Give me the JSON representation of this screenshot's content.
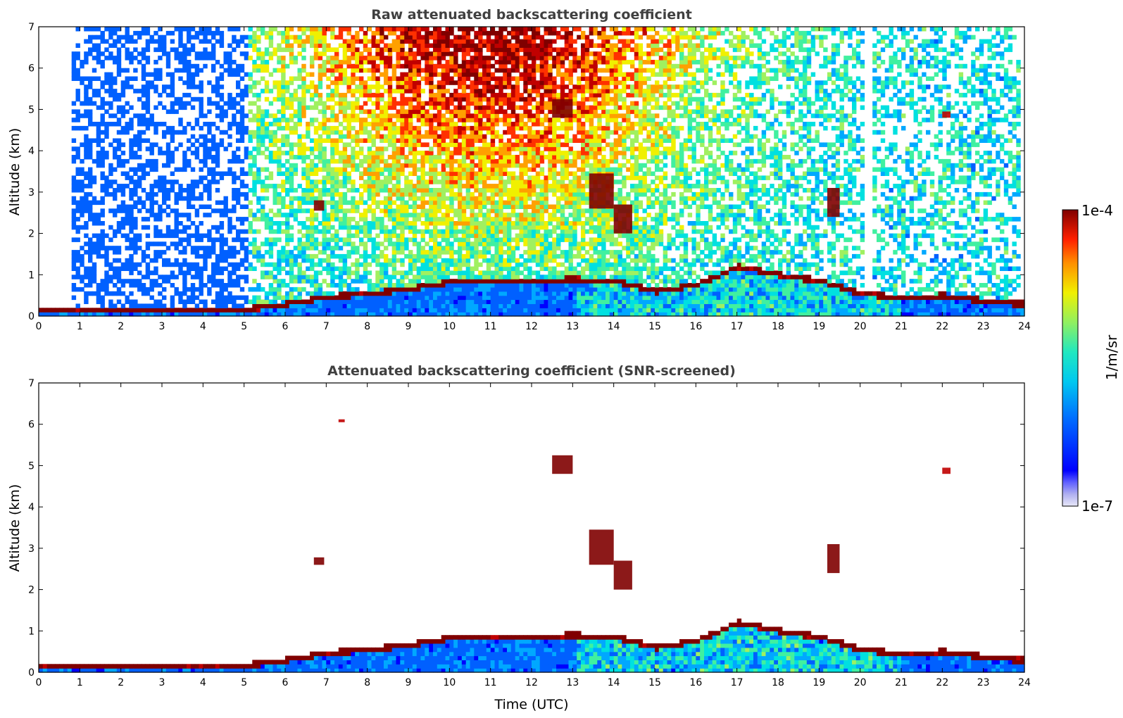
{
  "chart_data": [
    {
      "type": "heatmap",
      "title": "Raw attenuated backscattering coefficient",
      "xlabel": "",
      "ylabel": "Altitude (km)",
      "xlim": [
        0,
        24
      ],
      "ylim": [
        0,
        7
      ],
      "xticks": [
        "0",
        "1",
        "2",
        "3",
        "4",
        "5",
        "6",
        "7",
        "8",
        "9",
        "10",
        "11",
        "12",
        "13",
        "14",
        "15",
        "16",
        "17",
        "18",
        "19",
        "20",
        "21",
        "22",
        "23",
        "24"
      ],
      "yticks": [
        "0",
        "1",
        "2",
        "3",
        "4",
        "5",
        "6",
        "7"
      ],
      "colorbar": {
        "label": "1/m/sr",
        "min_label": "1e-7",
        "max_label": "1e-4",
        "scale": "log"
      },
      "screened": false,
      "colormap": [
        "#e8e8f8",
        "#b8b8f0",
        "#0000ff",
        "#0060ff",
        "#00a8ff",
        "#00e0e0",
        "#40f0a0",
        "#a0f060",
        "#f0f000",
        "#ffa000",
        "#ff3000",
        "#c00000",
        "#800000"
      ],
      "boundary_layer_top_km": [
        [
          0,
          0.12
        ],
        [
          1,
          0.1
        ],
        [
          2,
          0.08
        ],
        [
          3,
          0.08
        ],
        [
          4,
          0.1
        ],
        [
          5,
          0.12
        ],
        [
          6,
          0.25
        ],
        [
          7,
          0.42
        ],
        [
          8,
          0.5
        ],
        [
          9,
          0.62
        ],
        [
          10,
          0.78
        ],
        [
          11,
          0.82
        ],
        [
          12,
          0.8
        ],
        [
          13,
          0.85
        ],
        [
          14,
          0.8
        ],
        [
          15,
          0.55
        ],
        [
          16,
          0.72
        ],
        [
          17,
          1.15
        ],
        [
          18,
          0.95
        ],
        [
          19,
          0.8
        ],
        [
          20,
          0.5
        ],
        [
          21,
          0.4
        ],
        [
          22,
          0.45
        ],
        [
          23,
          0.32
        ],
        [
          23.8,
          0.25
        ]
      ],
      "cloud_features": [
        {
          "t_start": 6.7,
          "t_end": 6.95,
          "z_bottom": 2.55,
          "z_top": 2.8,
          "level": 1.0
        },
        {
          "t_start": 12.5,
          "t_end": 13.0,
          "z_bottom": 4.8,
          "z_top": 5.25,
          "level": 1.0
        },
        {
          "t_start": 13.4,
          "t_end": 14.0,
          "z_bottom": 2.6,
          "z_top": 3.45,
          "level": 0.95
        },
        {
          "t_start": 14.0,
          "t_end": 14.45,
          "z_bottom": 2.0,
          "z_top": 2.7,
          "level": 0.95
        },
        {
          "t_start": 19.2,
          "t_end": 19.5,
          "z_bottom": 2.4,
          "z_top": 3.1,
          "level": 0.95
        },
        {
          "t_start": 22.0,
          "t_end": 22.2,
          "z_bottom": 4.8,
          "z_top": 4.95,
          "level": 0.9
        }
      ]
    },
    {
      "type": "heatmap",
      "title": "Attenuated backscattering coefficient (SNR-screened)",
      "xlabel": "Time (UTC)",
      "ylabel": "Altitude (km)",
      "xlim": [
        0,
        24
      ],
      "ylim": [
        0,
        7
      ],
      "xticks": [
        "0",
        "1",
        "2",
        "3",
        "4",
        "5",
        "6",
        "7",
        "8",
        "9",
        "10",
        "11",
        "12",
        "13",
        "14",
        "15",
        "16",
        "17",
        "18",
        "19",
        "20",
        "21",
        "22",
        "23",
        "24"
      ],
      "yticks": [
        "0",
        "1",
        "2",
        "3",
        "4",
        "5",
        "6",
        "7"
      ],
      "screened": true,
      "cloud_features": [
        {
          "t_start": 6.7,
          "t_end": 6.95,
          "z_bottom": 2.6,
          "z_top": 2.78,
          "level": 1.0
        },
        {
          "t_start": 7.3,
          "t_end": 7.45,
          "z_bottom": 6.05,
          "z_top": 6.12,
          "level": 0.9
        },
        {
          "t_start": 12.5,
          "t_end": 13.0,
          "z_bottom": 4.8,
          "z_top": 5.25,
          "level": 1.0
        },
        {
          "t_start": 13.4,
          "t_end": 14.0,
          "z_bottom": 2.6,
          "z_top": 3.45,
          "level": 0.95
        },
        {
          "t_start": 14.0,
          "t_end": 14.45,
          "z_bottom": 2.0,
          "z_top": 2.7,
          "level": 0.95
        },
        {
          "t_start": 19.2,
          "t_end": 19.5,
          "z_bottom": 2.4,
          "z_top": 3.1,
          "level": 0.95
        },
        {
          "t_start": 22.0,
          "t_end": 22.2,
          "z_bottom": 4.8,
          "z_top": 4.95,
          "level": 0.9
        }
      ]
    }
  ]
}
